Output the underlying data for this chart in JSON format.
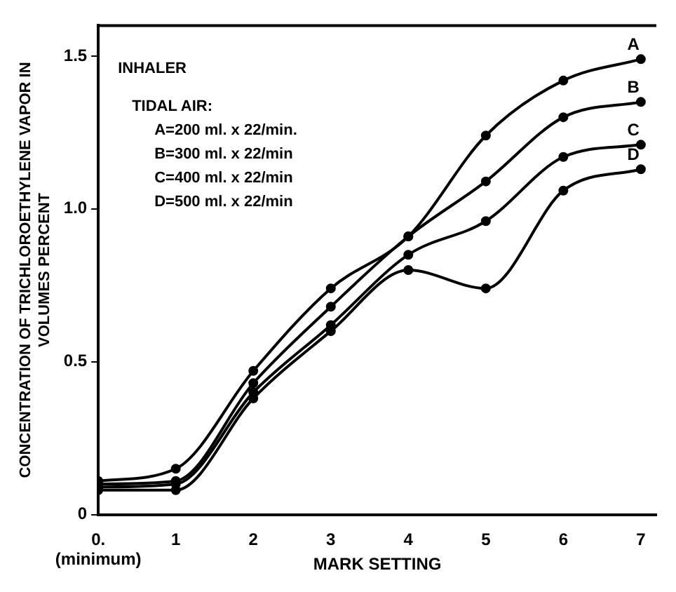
{
  "chart_data": {
    "type": "line",
    "xlabel": "MARK SETTING",
    "ylabel": "CONCENTRATION OF TRICHLOROETHYLENE VAPOR IN\nVOLUMES PERCENT",
    "x": [
      0,
      1,
      2,
      3,
      4,
      5,
      6,
      7
    ],
    "series": [
      {
        "name": "A",
        "color": "#000000",
        "values": [
          0.11,
          0.15,
          0.47,
          0.74,
          0.91,
          1.24,
          1.42,
          1.49
        ]
      },
      {
        "name": "B",
        "color": "#000000",
        "values": [
          0.1,
          0.11,
          0.43,
          0.68,
          0.91,
          1.09,
          1.3,
          1.35
        ]
      },
      {
        "name": "C",
        "color": "#000000",
        "values": [
          0.09,
          0.1,
          0.4,
          0.62,
          0.85,
          0.96,
          1.17,
          1.21
        ]
      },
      {
        "name": "D",
        "color": "#000000",
        "values": [
          0.08,
          0.08,
          0.38,
          0.6,
          0.8,
          0.74,
          1.06,
          1.13
        ]
      }
    ],
    "annotations": [
      "INHALER",
      "TIDAL AIR:",
      "A=200 ml. x 22/min.",
      "B=300 ml. x 22/min",
      "C=400 ml. x 22/min",
      "D=500 ml. x 22/min"
    ],
    "xlim": [
      0,
      7.2
    ],
    "xticks": [
      {
        "value": 0,
        "label": "0.\n(minimum)"
      },
      1,
      2,
      3,
      4,
      5,
      6,
      7
    ],
    "ylim": [
      0,
      1.6
    ],
    "yticks": [
      0,
      {
        "value": 0.5,
        "label": "0.5"
      },
      {
        "value": 1,
        "label": "1.0"
      },
      1.5
    ],
    "grid": false,
    "legend": false,
    "marker": "circle",
    "line_style": "solid"
  }
}
